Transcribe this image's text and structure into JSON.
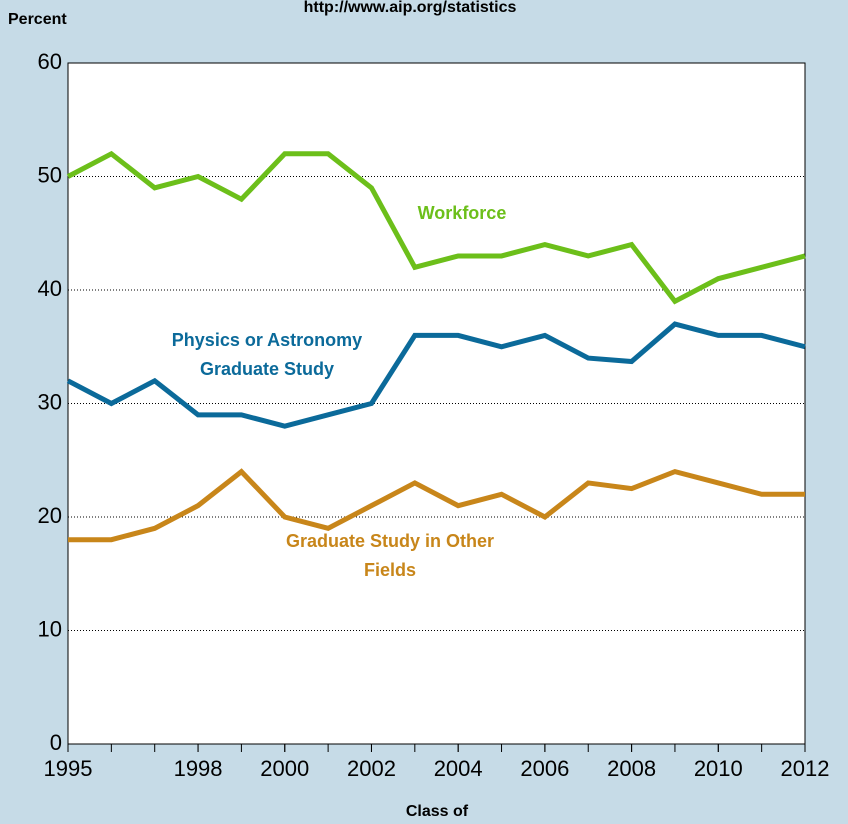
{
  "chart_data": {
    "type": "line",
    "source": "http://www.aip.org/statistics",
    "y_label": "Percent",
    "x_label": "Class of",
    "x": [
      1995,
      1996,
      1997,
      1998,
      1999,
      2000,
      2001,
      2002,
      2003,
      2004,
      2005,
      2006,
      2007,
      2008,
      2009,
      2010,
      2011,
      2012
    ],
    "series": [
      {
        "name": "Workforce",
        "color": "#6cbf1a",
        "values": [
          50,
          52,
          49,
          50,
          48,
          52,
          52,
          49,
          42,
          43,
          43,
          44,
          43,
          44,
          39,
          41,
          42,
          43
        ]
      },
      {
        "name": "Physics or Astronomy Graduate Study",
        "color": "#0b6a9a",
        "values": [
          32,
          30,
          32,
          29,
          29,
          28,
          29,
          30,
          36,
          36,
          35,
          36,
          34,
          33.7,
          37,
          36,
          36,
          35
        ]
      },
      {
        "name": "Graduate Study in Other Fields",
        "color": "#c8861a",
        "values": [
          18,
          18,
          19,
          21,
          24,
          20,
          19,
          21,
          23,
          21,
          22,
          20,
          23,
          22.5,
          24,
          23,
          22,
          22
        ]
      }
    ],
    "xlim": [
      1995,
      2012
    ],
    "xticks": [
      1995,
      1998,
      2000,
      2002,
      2004,
      2006,
      2008,
      2010,
      2012
    ],
    "xminor_step": 1,
    "ylim": [
      0,
      60
    ],
    "yticks": [
      0,
      10,
      20,
      30,
      40,
      50,
      60
    ],
    "grid": true
  }
}
